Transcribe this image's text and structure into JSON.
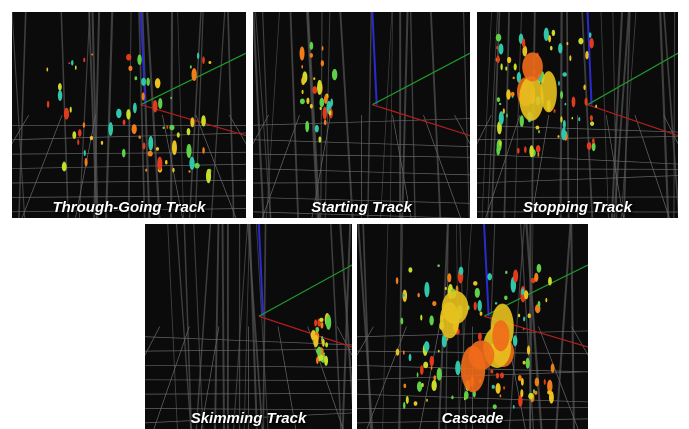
{
  "panels": [
    {
      "label": "Through-Going Track"
    },
    {
      "label": "Starting Track"
    },
    {
      "label": "Stopping Track"
    },
    {
      "label": "Skimming Track"
    },
    {
      "label": "Cascade"
    }
  ]
}
